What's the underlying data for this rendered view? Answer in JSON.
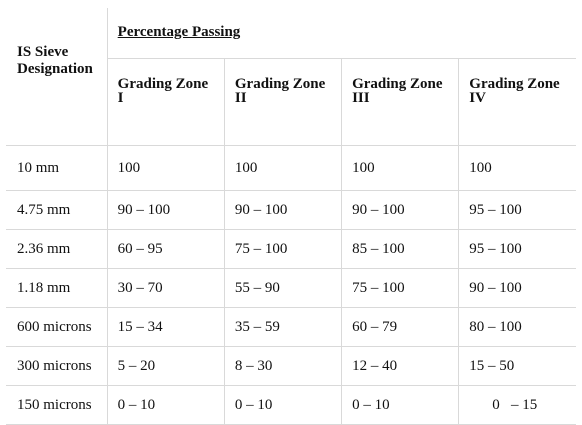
{
  "table": {
    "sieve_header": "IS Sieve Designation",
    "group_header": "Percentage Passing",
    "zones": [
      {
        "line1": "Grading Zone",
        "line2": "I"
      },
      {
        "line1": "Grading Zone",
        "line2": "II"
      },
      {
        "line1": "Grading Zone",
        "line2": "III"
      },
      {
        "line1": "Grading Zone",
        "line2": "IV"
      }
    ],
    "rows": [
      {
        "sieve": "10 mm",
        "values": [
          "100",
          "100",
          "100",
          "100"
        ]
      },
      {
        "sieve": "4.75 mm",
        "values": [
          "90 – 100",
          "90 – 100",
          "90 – 100",
          "95 – 100"
        ]
      },
      {
        "sieve": "2.36 mm",
        "values": [
          "60 – 95",
          "75 – 100",
          "85 – 100",
          "95 – 100"
        ]
      },
      {
        "sieve": "1.18 mm",
        "values": [
          "30 – 70",
          "55 – 90",
          "75 – 100",
          "90 – 100"
        ]
      },
      {
        "sieve": "600 microns",
        "values": [
          "15 – 34",
          "35 – 59",
          "60 – 79",
          "80 – 100"
        ]
      },
      {
        "sieve": "300 microns",
        "values": [
          "5 – 20",
          "8 – 30",
          "12 – 40",
          "15 – 50"
        ]
      },
      {
        "sieve": "150 microns",
        "values": [
          "0 – 10",
          "0 – 10",
          "0 – 10",
          "0   – 15"
        ]
      }
    ]
  }
}
